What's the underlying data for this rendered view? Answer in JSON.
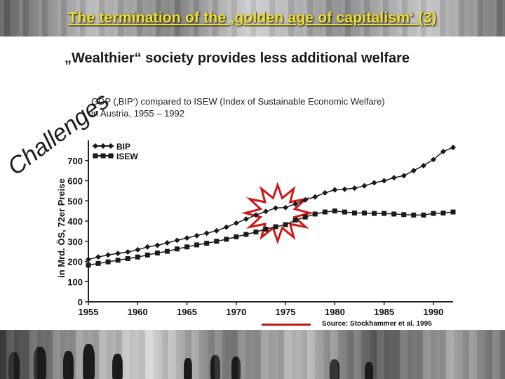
{
  "slide": {
    "title": "The termination of the ‚golden age of capitalism‘ (3)",
    "subtitle": "„Wealthier“ society provides less additional welfare",
    "side_label": "Challenges",
    "description_line1": "GDP (‚BIP‘) compared to ISEW (Index of Sustainable Economic Welfare)",
    "description_line2": "in Austria, 1955 – 1992",
    "source": "Source: Stockhammer et al. 1995"
  },
  "colors": {
    "title": "#f4df2a",
    "series": "#1a1a1a",
    "star_fill": "#ffffff",
    "star_stroke": "#d01818",
    "source_line": "#c01818"
  },
  "chart_data": {
    "type": "line",
    "title": "",
    "xlabel": "",
    "ylabel": "in Mrd. ÖS, 72er Preise",
    "xlim": [
      1955,
      1992
    ],
    "ylim": [
      0,
      800
    ],
    "x_ticks": [
      1955,
      1960,
      1965,
      1970,
      1975,
      1980,
      1985,
      1990
    ],
    "y_ticks": [
      0,
      100,
      200,
      300,
      400,
      500,
      600,
      700
    ],
    "legend_position": "top-left",
    "grid": false,
    "x": [
      1955,
      1956,
      1957,
      1958,
      1959,
      1960,
      1961,
      1962,
      1963,
      1964,
      1965,
      1966,
      1967,
      1968,
      1969,
      1970,
      1971,
      1972,
      1973,
      1974,
      1975,
      1976,
      1977,
      1978,
      1979,
      1980,
      1981,
      1982,
      1983,
      1984,
      1985,
      1986,
      1987,
      1988,
      1989,
      1990,
      1991,
      1992
    ],
    "series": [
      {
        "name": "BIP",
        "marker": "diamond",
        "values": [
          210,
          222,
          232,
          240,
          247,
          258,
          272,
          280,
          292,
          305,
          316,
          328,
          340,
          352,
          370,
          390,
          410,
          430,
          448,
          465,
          467,
          485,
          505,
          520,
          540,
          555,
          558,
          563,
          575,
          590,
          600,
          615,
          625,
          650,
          675,
          705,
          745,
          765
        ]
      },
      {
        "name": "ISEW",
        "marker": "square",
        "values": [
          182,
          190,
          198,
          206,
          214,
          222,
          232,
          242,
          250,
          262,
          272,
          282,
          290,
          300,
          310,
          322,
          334,
          346,
          360,
          372,
          382,
          405,
          420,
          435,
          445,
          450,
          445,
          440,
          440,
          438,
          438,
          435,
          432,
          430,
          430,
          438,
          440,
          445
        ]
      }
    ]
  }
}
